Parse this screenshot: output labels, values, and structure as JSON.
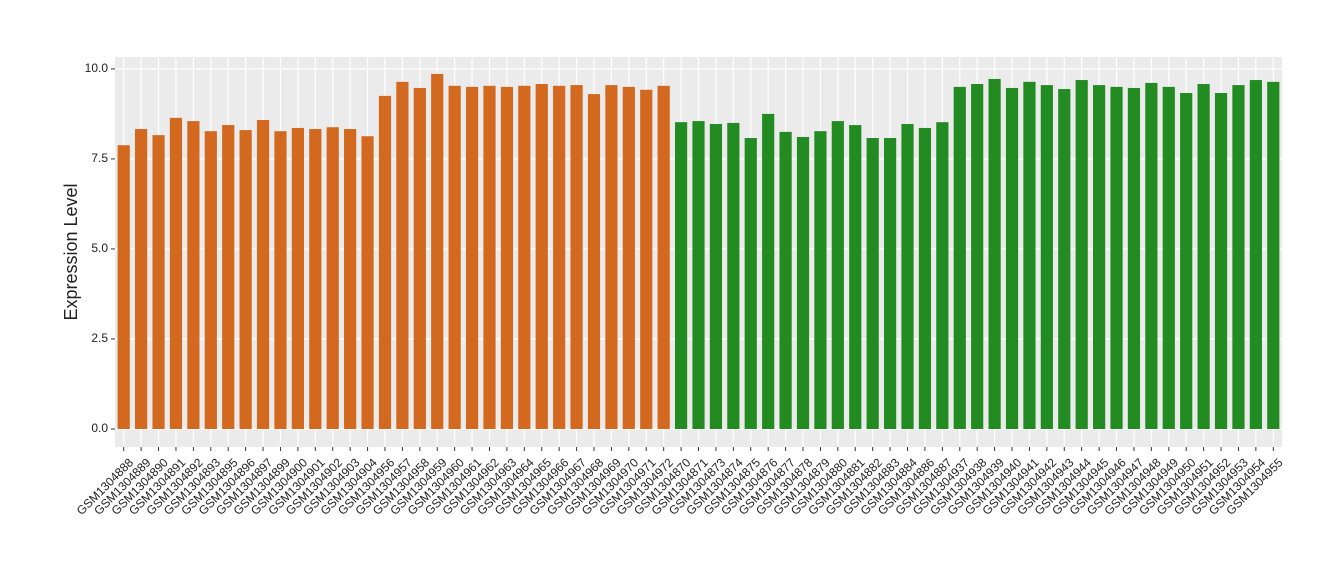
{
  "chart_data": {
    "type": "bar",
    "y_label": "Expression Level",
    "categories": [
      "GSM1304888",
      "GSM1304889",
      "GSM1304890",
      "GSM1304891",
      "GSM1304892",
      "GSM1304893",
      "GSM1304895",
      "GSM1304896",
      "GSM1304897",
      "GSM1304899",
      "GSM1304900",
      "GSM1304901",
      "GSM1304902",
      "GSM1304903",
      "GSM1304904",
      "GSM1304956",
      "GSM1304957",
      "GSM1304958",
      "GSM1304959",
      "GSM1304960",
      "GSM1304961",
      "GSM1304962",
      "GSM1304963",
      "GSM1304964",
      "GSM1304965",
      "GSM1304966",
      "GSM1304967",
      "GSM1304968",
      "GSM1304969",
      "GSM1304970",
      "GSM1304971",
      "GSM1304972",
      "GSM1304870",
      "GSM1304871",
      "GSM1304873",
      "GSM1304874",
      "GSM1304875",
      "GSM1304876",
      "GSM1304877",
      "GSM1304878",
      "GSM1304879",
      "GSM1304880",
      "GSM1304881",
      "GSM1304882",
      "GSM1304883",
      "GSM1304884",
      "GSM1304886",
      "GSM1304887",
      "GSM1304937",
      "GSM1304938",
      "GSM1304939",
      "GSM1304940",
      "GSM1304941",
      "GSM1304942",
      "GSM1304943",
      "GSM1304944",
      "GSM1304945",
      "GSM1304946",
      "GSM1304947",
      "GSM1304948",
      "GSM1304949",
      "GSM1304950",
      "GSM1304951",
      "GSM1304952",
      "GSM1304953",
      "GSM1304954",
      "GSM1304955"
    ],
    "values": [
      7.88,
      8.33,
      8.16,
      8.64,
      8.55,
      8.27,
      8.44,
      8.3,
      8.58,
      8.27,
      8.36,
      8.33,
      8.38,
      8.33,
      8.13,
      9.25,
      9.64,
      9.47,
      9.86,
      9.53,
      9.5,
      9.53,
      9.5,
      9.53,
      9.58,
      9.53,
      9.55,
      9.3,
      9.55,
      9.5,
      9.42,
      9.53,
      8.52,
      8.55,
      8.47,
      8.5,
      8.08,
      8.75,
      8.25,
      8.11,
      8.27,
      8.55,
      8.44,
      8.08,
      8.08,
      8.47,
      8.36,
      8.52,
      9.5,
      9.58,
      9.72,
      9.47,
      9.64,
      9.55,
      9.44,
      9.69,
      9.55,
      9.5,
      9.47,
      9.61,
      9.5,
      9.33,
      9.58,
      9.33,
      9.55,
      9.69,
      9.64
    ],
    "colors": [
      "#d2691e",
      "#d2691e",
      "#d2691e",
      "#d2691e",
      "#d2691e",
      "#d2691e",
      "#d2691e",
      "#d2691e",
      "#d2691e",
      "#d2691e",
      "#d2691e",
      "#d2691e",
      "#d2691e",
      "#d2691e",
      "#d2691e",
      "#d2691e",
      "#d2691e",
      "#d2691e",
      "#d2691e",
      "#d2691e",
      "#d2691e",
      "#d2691e",
      "#d2691e",
      "#d2691e",
      "#d2691e",
      "#d2691e",
      "#d2691e",
      "#d2691e",
      "#d2691e",
      "#d2691e",
      "#d2691e",
      "#d2691e",
      "#228b22",
      "#228b22",
      "#228b22",
      "#228b22",
      "#228b22",
      "#228b22",
      "#228b22",
      "#228b22",
      "#228b22",
      "#228b22",
      "#228b22",
      "#228b22",
      "#228b22",
      "#228b22",
      "#228b22",
      "#228b22",
      "#228b22",
      "#228b22",
      "#228b22",
      "#228b22",
      "#228b22",
      "#228b22",
      "#228b22",
      "#228b22",
      "#228b22",
      "#228b22",
      "#228b22",
      "#228b22",
      "#228b22",
      "#228b22",
      "#228b22",
      "#228b22",
      "#228b22",
      "#228b22",
      "#228b22"
    ],
    "ylim": [
      -0.5,
      10.33
    ],
    "yticks": [
      {
        "value": 0,
        "label": "0.0"
      },
      2.5,
      {
        "value": 5,
        "label": "5.0"
      },
      7.5,
      {
        "value": 10,
        "label": "10.0"
      }
    ],
    "grid": true
  }
}
